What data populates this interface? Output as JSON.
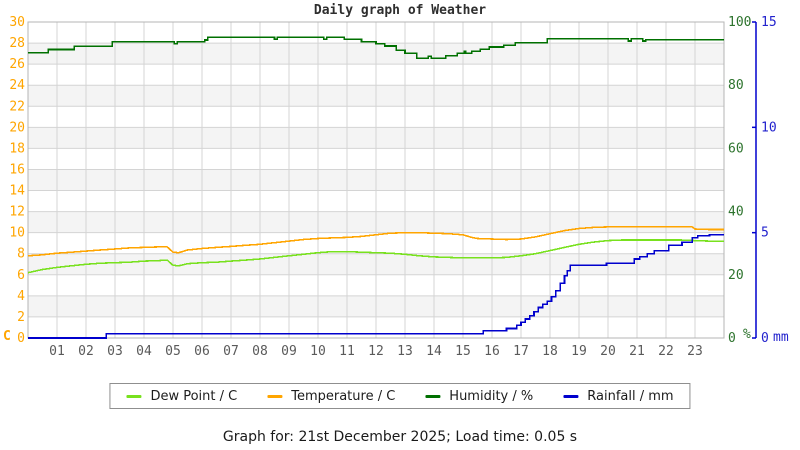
{
  "footer": {
    "text": "Graph for: 21st December 2025; Load time: 0.05 s"
  },
  "colors": {
    "dew_point": "#78E11E",
    "temperature": "#FFA500",
    "humidity": "#007000",
    "rainfall": "#0000CD",
    "left_axis_labels": "#FFA500",
    "humidity_axis_labels": "#2D732D",
    "rain_axis_labels": "#2222CD",
    "x_axis_labels": "#5a5a5a",
    "band": "#f4f4f4",
    "grid": "#d4d4d4",
    "border": "#b5b5b5"
  },
  "chart_data": {
    "type": "line",
    "title": "Daily graph of Weather",
    "grid": true,
    "legend_position": "bottom",
    "x_axis": {
      "range": [
        0,
        24
      ],
      "tick_labels": [
        "01",
        "02",
        "03",
        "04",
        "05",
        "06",
        "07",
        "08",
        "09",
        "10",
        "11",
        "12",
        "13",
        "14",
        "15",
        "16",
        "17",
        "18",
        "19",
        "20",
        "21",
        "22",
        "23"
      ]
    },
    "left_axis": {
      "unit": "C",
      "range": [
        0,
        30
      ],
      "ticks": [
        0,
        2,
        4,
        6,
        8,
        10,
        12,
        14,
        16,
        18,
        20,
        22,
        24,
        26,
        28,
        30
      ]
    },
    "humidity_axis": {
      "unit": "%",
      "range": [
        0,
        100
      ],
      "ticks": [
        0,
        20,
        40,
        60,
        80,
        100
      ]
    },
    "rain_axis": {
      "unit": "mm",
      "range": [
        0,
        15
      ],
      "ticks": [
        0,
        5,
        10,
        15
      ]
    },
    "series": [
      {
        "name": "Dew Point / C",
        "color": "#78E11E",
        "axis": "left",
        "style": "linear",
        "points": [
          [
            0,
            6.2
          ],
          [
            0.5,
            6.5
          ],
          [
            1,
            6.7
          ],
          [
            1.5,
            6.85
          ],
          [
            2,
            7.0
          ],
          [
            2.5,
            7.1
          ],
          [
            3,
            7.15
          ],
          [
            3.5,
            7.2
          ],
          [
            4,
            7.3
          ],
          [
            4.5,
            7.35
          ],
          [
            4.8,
            7.4
          ],
          [
            5,
            6.9
          ],
          [
            5.2,
            6.85
          ],
          [
            5.5,
            7.05
          ],
          [
            6,
            7.15
          ],
          [
            6.5,
            7.2
          ],
          [
            7,
            7.3
          ],
          [
            7.5,
            7.4
          ],
          [
            8,
            7.5
          ],
          [
            8.5,
            7.65
          ],
          [
            9,
            7.8
          ],
          [
            9.5,
            7.95
          ],
          [
            10,
            8.1
          ],
          [
            10.5,
            8.2
          ],
          [
            11,
            8.2
          ],
          [
            11.5,
            8.15
          ],
          [
            12,
            8.1
          ],
          [
            12.5,
            8.05
          ],
          [
            13,
            7.95
          ],
          [
            13.5,
            7.8
          ],
          [
            14,
            7.7
          ],
          [
            14.5,
            7.65
          ],
          [
            15,
            7.6
          ],
          [
            15.5,
            7.6
          ],
          [
            16,
            7.6
          ],
          [
            16.5,
            7.65
          ],
          [
            17,
            7.8
          ],
          [
            17.5,
            8.0
          ],
          [
            18,
            8.3
          ],
          [
            18.5,
            8.6
          ],
          [
            19,
            8.9
          ],
          [
            19.5,
            9.1
          ],
          [
            20,
            9.25
          ],
          [
            20.5,
            9.3
          ],
          [
            21,
            9.3
          ],
          [
            21.5,
            9.3
          ],
          [
            22,
            9.3
          ],
          [
            22.5,
            9.3
          ],
          [
            23,
            9.25
          ],
          [
            23.5,
            9.2
          ],
          [
            24,
            9.2
          ]
        ]
      },
      {
        "name": "Temperature / C",
        "color": "#FFA500",
        "axis": "left",
        "style": "linear",
        "points": [
          [
            0,
            7.8
          ],
          [
            0.5,
            7.9
          ],
          [
            1,
            8.05
          ],
          [
            1.5,
            8.15
          ],
          [
            2,
            8.25
          ],
          [
            2.5,
            8.35
          ],
          [
            3,
            8.45
          ],
          [
            3.5,
            8.55
          ],
          [
            4,
            8.6
          ],
          [
            4.5,
            8.65
          ],
          [
            4.8,
            8.65
          ],
          [
            5,
            8.15
          ],
          [
            5.2,
            8.1
          ],
          [
            5.5,
            8.35
          ],
          [
            6,
            8.5
          ],
          [
            6.5,
            8.6
          ],
          [
            7,
            8.7
          ],
          [
            7.5,
            8.8
          ],
          [
            8,
            8.9
          ],
          [
            8.5,
            9.05
          ],
          [
            9,
            9.2
          ],
          [
            9.5,
            9.35
          ],
          [
            10,
            9.45
          ],
          [
            10.5,
            9.5
          ],
          [
            11,
            9.55
          ],
          [
            11.5,
            9.65
          ],
          [
            12,
            9.8
          ],
          [
            12.5,
            9.95
          ],
          [
            13,
            10.0
          ],
          [
            13.5,
            10.0
          ],
          [
            14,
            9.95
          ],
          [
            14.5,
            9.9
          ],
          [
            15,
            9.8
          ],
          [
            15.3,
            9.55
          ],
          [
            15.5,
            9.45
          ],
          [
            16,
            9.4
          ],
          [
            16.5,
            9.35
          ],
          [
            17,
            9.4
          ],
          [
            17.5,
            9.6
          ],
          [
            18,
            9.9
          ],
          [
            18.5,
            10.2
          ],
          [
            19,
            10.4
          ],
          [
            19.5,
            10.5
          ],
          [
            20,
            10.55
          ],
          [
            21,
            10.55
          ],
          [
            22,
            10.55
          ],
          [
            22.9,
            10.55
          ],
          [
            23,
            10.35
          ],
          [
            23.5,
            10.3
          ],
          [
            24,
            10.3
          ]
        ]
      },
      {
        "name": "Humidity / %",
        "color": "#007000",
        "axis": "humidity",
        "style": "step",
        "points": [
          [
            0,
            90.3
          ],
          [
            0.7,
            91.3
          ],
          [
            1.6,
            92.3
          ],
          [
            2.9,
            93.8
          ],
          [
            5.05,
            93.1
          ],
          [
            5.15,
            93.8
          ],
          [
            6.1,
            94.3
          ],
          [
            6.2,
            95.2
          ],
          [
            8.5,
            94.6
          ],
          [
            8.6,
            95.2
          ],
          [
            10.2,
            94.6
          ],
          [
            10.3,
            95.2
          ],
          [
            10.9,
            94.5
          ],
          [
            11.5,
            93.8
          ],
          [
            12,
            93.1
          ],
          [
            12.3,
            92.4
          ],
          [
            12.7,
            91.1
          ],
          [
            13,
            90.1
          ],
          [
            13.4,
            88.5
          ],
          [
            13.8,
            89.2
          ],
          [
            13.9,
            88.5
          ],
          [
            14.4,
            89.3
          ],
          [
            14.8,
            90.1
          ],
          [
            15.05,
            90.7
          ],
          [
            15.1,
            90.1
          ],
          [
            15.3,
            90.7
          ],
          [
            15.6,
            91.4
          ],
          [
            15.9,
            92.1
          ],
          [
            16.4,
            92.7
          ],
          [
            16.8,
            93.4
          ],
          [
            17.9,
            94.7
          ],
          [
            20.7,
            94.0
          ],
          [
            20.8,
            94.7
          ],
          [
            21.2,
            94.0
          ],
          [
            21.3,
            94.4
          ],
          [
            24,
            94.4
          ]
        ]
      },
      {
        "name": "Rainfall / mm",
        "color": "#0000CD",
        "axis": "rain",
        "style": "step",
        "points": [
          [
            0,
            0
          ],
          [
            2.7,
            0.2
          ],
          [
            15.7,
            0.35
          ],
          [
            16.5,
            0.45
          ],
          [
            16.85,
            0.6
          ],
          [
            17,
            0.75
          ],
          [
            17.15,
            0.9
          ],
          [
            17.3,
            1.05
          ],
          [
            17.45,
            1.25
          ],
          [
            17.6,
            1.45
          ],
          [
            17.75,
            1.6
          ],
          [
            17.9,
            1.75
          ],
          [
            18.05,
            1.95
          ],
          [
            18.2,
            2.25
          ],
          [
            18.35,
            2.6
          ],
          [
            18.5,
            2.95
          ],
          [
            18.6,
            3.2
          ],
          [
            18.7,
            3.45
          ],
          [
            19.95,
            3.55
          ],
          [
            20.9,
            3.75
          ],
          [
            21.1,
            3.85
          ],
          [
            21.35,
            4.0
          ],
          [
            21.6,
            4.15
          ],
          [
            22.1,
            4.4
          ],
          [
            22.55,
            4.55
          ],
          [
            22.9,
            4.75
          ],
          [
            23.1,
            4.85
          ],
          [
            23.5,
            4.9
          ],
          [
            24,
            4.9
          ]
        ]
      }
    ]
  }
}
